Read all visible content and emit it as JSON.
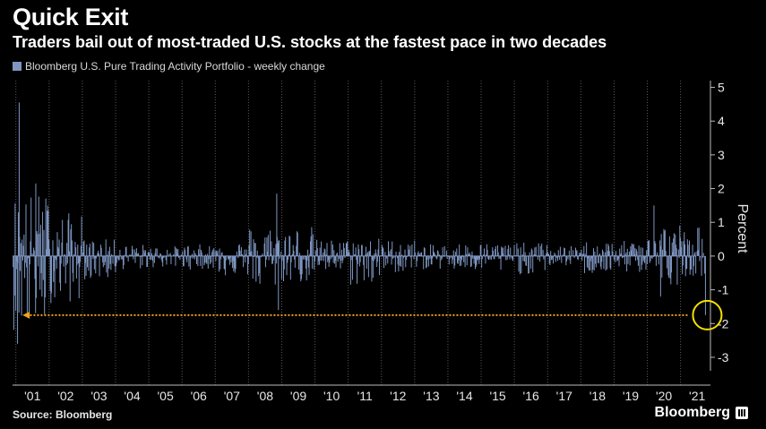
{
  "header": {
    "title": "Quick Exit",
    "subtitle": "Traders bail out of most-traded U.S. stocks at the fastest pace in two decades"
  },
  "footer": {
    "source": "Source: Bloomberg",
    "brand": "Bloomberg"
  },
  "colors": {
    "background": "#000000",
    "bars": "#7f97c2",
    "highlight": "#f5e000",
    "arrow": "#f0a020"
  },
  "chart_data": {
    "type": "bar",
    "title": "Quick Exit",
    "subtitle": "Traders bail out of most-traded U.S. stocks at the fastest pace in two decades",
    "legend": [
      "Bloomberg U.S. Pure Trading Activity Portfolio - weekly change"
    ],
    "legend_position": "top-left",
    "ylabel": "Percent",
    "ylim": [
      -3.4,
      5.2
    ],
    "yticks": [
      5,
      4,
      3,
      2,
      1,
      0,
      -1,
      -2,
      -3
    ],
    "xlabels": [
      "'01",
      "'02",
      "'03",
      "'04",
      "'05",
      "'06",
      "'07",
      "'08",
      "'09",
      "'10",
      "'11",
      "'12",
      "'13",
      "'14",
      "'15",
      "'16",
      "'17",
      "'18",
      "'19",
      "'20",
      "'21"
    ],
    "x_range": [
      2000.9,
      2021.9
    ],
    "grid": "vertical dotted",
    "annotation": {
      "x": 2021.75,
      "y": -1.75,
      "marker": "circle",
      "arrow_to_x": 2001.2
    },
    "series": [
      {
        "name": "Bloomberg U.S. Pure Trading Activity Portfolio - weekly change",
        "key_points": [
          {
            "x": 2001.1,
            "y": 4.55
          },
          {
            "x": 2001.05,
            "y": -2.6
          },
          {
            "x": 2001.6,
            "y": 2.15
          },
          {
            "x": 2001.4,
            "y": -1.85
          },
          {
            "x": 2008.85,
            "y": 1.85
          },
          {
            "x": 2008.9,
            "y": -1.6
          },
          {
            "x": 2020.2,
            "y": 1.5
          },
          {
            "x": 2020.4,
            "y": -1.2
          },
          {
            "x": 2021.75,
            "y": -1.75
          }
        ],
        "envelope_by_year": [
          {
            "year": 2001,
            "pos": 1.9,
            "neg": -2.2
          },
          {
            "year": 2002,
            "pos": 1.3,
            "neg": -1.4
          },
          {
            "year": 2003,
            "pos": 0.5,
            "neg": -0.7
          },
          {
            "year": 2004,
            "pos": 0.35,
            "neg": -0.4
          },
          {
            "year": 2005,
            "pos": 0.3,
            "neg": -0.35
          },
          {
            "year": 2006,
            "pos": 0.35,
            "neg": -0.4
          },
          {
            "year": 2007,
            "pos": 0.45,
            "neg": -0.6
          },
          {
            "year": 2008,
            "pos": 0.9,
            "neg": -1.0
          },
          {
            "year": 2009,
            "pos": 0.9,
            "neg": -0.8
          },
          {
            "year": 2010,
            "pos": 0.5,
            "neg": -0.5
          },
          {
            "year": 2011,
            "pos": 0.55,
            "neg": -0.9
          },
          {
            "year": 2012,
            "pos": 0.5,
            "neg": -0.5
          },
          {
            "year": 2013,
            "pos": 0.35,
            "neg": -0.4
          },
          {
            "year": 2014,
            "pos": 0.4,
            "neg": -0.45
          },
          {
            "year": 2015,
            "pos": 0.4,
            "neg": -0.5
          },
          {
            "year": 2016,
            "pos": 0.4,
            "neg": -0.55
          },
          {
            "year": 2017,
            "pos": 0.3,
            "neg": -0.3
          },
          {
            "year": 2018,
            "pos": 0.45,
            "neg": -0.55
          },
          {
            "year": 2019,
            "pos": 0.45,
            "neg": -0.5
          },
          {
            "year": 2020,
            "pos": 1.0,
            "neg": -0.85
          },
          {
            "year": 2021,
            "pos": 0.9,
            "neg": -0.6
          }
        ]
      }
    ]
  }
}
